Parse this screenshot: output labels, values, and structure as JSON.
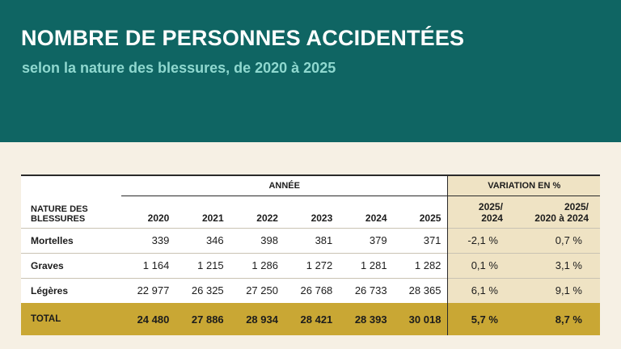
{
  "header": {
    "title": "NOMBRE DE PERSONNES ACCIDENTÉES",
    "subtitle": "selon la nature des blessures, de 2020 à 2025"
  },
  "table": {
    "group_annee": "ANNÉE",
    "group_variation": "VARIATION EN %",
    "nature_header_line1": "NATURE DES",
    "nature_header_line2": "BLESSURES",
    "years": [
      "2020",
      "2021",
      "2022",
      "2023",
      "2024",
      "2025"
    ],
    "var_headers": [
      {
        "line1": "2025/",
        "line2": "2024"
      },
      {
        "line1": "2025/",
        "line2": "2020 à 2024"
      }
    ],
    "rows": [
      {
        "label": "Mortelles",
        "values": [
          "339",
          "346",
          "398",
          "381",
          "379",
          "371"
        ],
        "var": [
          "-2,1 %",
          "0,7 %"
        ]
      },
      {
        "label": "Graves",
        "values": [
          "1 164",
          "1 215",
          "1 286",
          "1 272",
          "1 281",
          "1 282"
        ],
        "var": [
          "0,1 %",
          "3,1 %"
        ]
      },
      {
        "label": "Légères",
        "values": [
          "22 977",
          "26 325",
          "27 250",
          "26 768",
          "26 733",
          "28 365"
        ],
        "var": [
          "6,1 %",
          "9,1 %"
        ]
      }
    ],
    "total": {
      "label": "TOTAL",
      "values": [
        "24 480",
        "27 886",
        "28 934",
        "28 421",
        "28 393",
        "30 018"
      ],
      "var": [
        "5,7 %",
        "8,7 %"
      ]
    }
  },
  "colors": {
    "header_bg": "#0f6563",
    "subtitle": "#8fd8cf",
    "page_bg": "#f6f0e4",
    "variation_bg": "#efe3c4",
    "total_bg": "#c9a734"
  }
}
